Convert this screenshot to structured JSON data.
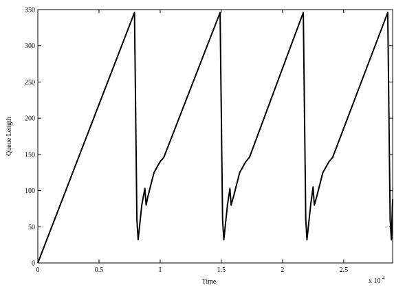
{
  "chart_data": {
    "type": "line",
    "title": "",
    "xlabel": "Time",
    "ylabel": "Queue Length",
    "x_multiplier_label": "x 10",
    "x_multiplier_exponent": "4",
    "xlim": [
      0,
      2.9
    ],
    "ylim": [
      0,
      350
    ],
    "xticks": [
      0,
      0.5,
      1,
      1.5,
      2,
      2.5
    ],
    "xtick_labels": [
      "0",
      "0.5",
      "1",
      "1.5",
      "2",
      "2.5"
    ],
    "yticks": [
      0,
      50,
      100,
      150,
      200,
      250,
      300,
      350
    ],
    "ytick_labels": [
      "0",
      "50",
      "100",
      "150",
      "200",
      "250",
      "300",
      "350"
    ],
    "grid": false,
    "line_color": "#000000",
    "series": [
      {
        "x": [
          0,
          0.79,
          0.81,
          0.82,
          0.85,
          0.875,
          0.885,
          0.9,
          0.95,
          1.0,
          1.03,
          1.49,
          1.51,
          1.52,
          1.55,
          1.57,
          1.58,
          1.6,
          1.65,
          1.7,
          1.73,
          2.17,
          2.19,
          2.2,
          2.23,
          2.25,
          2.26,
          2.28,
          2.33,
          2.38,
          2.41,
          2.86,
          2.88,
          2.89,
          2.9
        ],
        "y": [
          0,
          346,
          60,
          32,
          80,
          103,
          80,
          92,
          125,
          140,
          146,
          346,
          60,
          32,
          80,
          103,
          80,
          92,
          125,
          140,
          146,
          346,
          60,
          32,
          80,
          105,
          80,
          92,
          125,
          140,
          146,
          346,
          60,
          32,
          88
        ]
      }
    ]
  }
}
